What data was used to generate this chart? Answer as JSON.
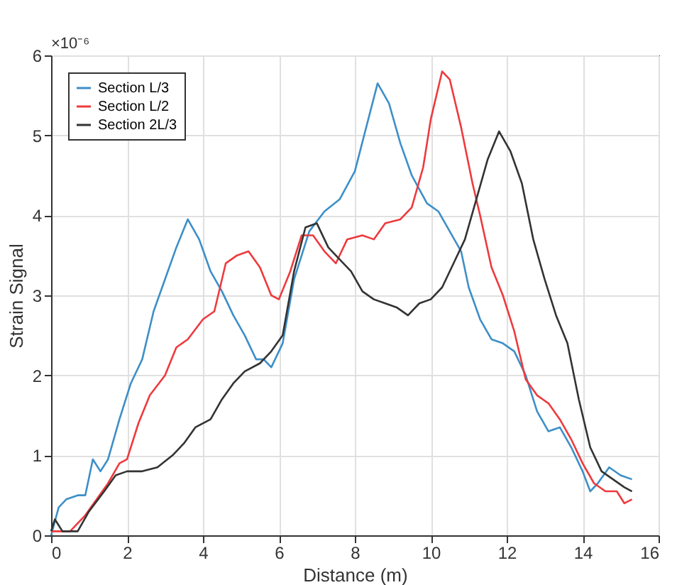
{
  "chart_data": {
    "type": "line",
    "xlabel": "Distance (m)",
    "ylabel": "Strain Signal",
    "annotations": [
      "×10⁻⁶"
    ],
    "xlim": [
      0,
      16
    ],
    "xticks": [
      0,
      2,
      4,
      6,
      8,
      10,
      12,
      14,
      16
    ],
    "ylim": [
      0,
      6
    ],
    "yticks": [
      0,
      1,
      2,
      3,
      4,
      5,
      6
    ],
    "grid": true,
    "legend": "top left",
    "marker": "none",
    "line_style": "solid",
    "series": [
      {
        "name": "Section L/3",
        "color": "#3d8fc8",
        "x": [
          0,
          0.2,
          0.4,
          0.7,
          0.9,
          1.1,
          1.3,
          1.5,
          1.8,
          2.1,
          2.4,
          2.7,
          3.0,
          3.3,
          3.6,
          3.9,
          4.2,
          4.5,
          4.8,
          5.1,
          5.4,
          5.6,
          5.8,
          6.1,
          6.4,
          6.8,
          7.2,
          7.6,
          8.0,
          8.3,
          8.6,
          8.9,
          9.2,
          9.5,
          9.9,
          10.2,
          10.5,
          10.8,
          11.0,
          11.3,
          11.6,
          11.9,
          12.2,
          12.5,
          12.8,
          13.1,
          13.4,
          13.7,
          14.0,
          14.2,
          14.4,
          14.7,
          15.0,
          15.3
        ],
        "values": [
          0,
          0.35,
          0.45,
          0.5,
          0.5,
          0.95,
          0.8,
          0.95,
          1.45,
          1.9,
          2.2,
          2.8,
          3.2,
          3.6,
          3.95,
          3.7,
          3.3,
          3.05,
          2.75,
          2.5,
          2.2,
          2.2,
          2.1,
          2.4,
          3.2,
          3.8,
          4.05,
          4.2,
          4.55,
          5.1,
          5.65,
          5.4,
          4.9,
          4.5,
          4.15,
          4.05,
          3.8,
          3.55,
          3.1,
          2.7,
          2.45,
          2.4,
          2.3,
          2.0,
          1.55,
          1.3,
          1.35,
          1.1,
          0.8,
          0.55,
          0.65,
          0.85,
          0.75,
          0.7
        ]
      },
      {
        "name": "Section L/2",
        "color": "#ee3a3e",
        "x": [
          0,
          0.5,
          0.9,
          1.2,
          1.5,
          1.8,
          2.0,
          2.3,
          2.6,
          3.0,
          3.3,
          3.6,
          4.0,
          4.3,
          4.6,
          4.9,
          5.2,
          5.5,
          5.8,
          6.0,
          6.3,
          6.6,
          6.9,
          7.2,
          7.5,
          7.8,
          8.2,
          8.5,
          8.8,
          9.2,
          9.5,
          9.8,
          10.0,
          10.3,
          10.5,
          10.8,
          11.1,
          11.3,
          11.6,
          11.9,
          12.2,
          12.5,
          12.8,
          13.1,
          13.4,
          13.7,
          14.0,
          14.3,
          14.6,
          14.9,
          15.1,
          15.3
        ],
        "values": [
          0.05,
          0.05,
          0.25,
          0.45,
          0.65,
          0.9,
          0.95,
          1.4,
          1.75,
          2.0,
          2.35,
          2.45,
          2.7,
          2.8,
          3.4,
          3.5,
          3.55,
          3.35,
          3.0,
          2.95,
          3.3,
          3.75,
          3.75,
          3.55,
          3.4,
          3.7,
          3.75,
          3.7,
          3.9,
          3.95,
          4.1,
          4.6,
          5.2,
          5.8,
          5.7,
          5.1,
          4.4,
          4.0,
          3.35,
          3.0,
          2.55,
          1.95,
          1.75,
          1.65,
          1.45,
          1.2,
          0.9,
          0.65,
          0.55,
          0.55,
          0.4,
          0.45
        ]
      },
      {
        "name": "Section 2L/3",
        "color": "#333333",
        "x": [
          0,
          0.1,
          0.3,
          0.7,
          1.0,
          1.4,
          1.7,
          2.0,
          2.4,
          2.8,
          3.2,
          3.5,
          3.8,
          4.2,
          4.5,
          4.8,
          5.1,
          5.5,
          5.8,
          6.1,
          6.4,
          6.7,
          7.0,
          7.3,
          7.6,
          7.9,
          8.2,
          8.5,
          8.8,
          9.1,
          9.4,
          9.7,
          10.0,
          10.3,
          10.6,
          10.9,
          11.2,
          11.5,
          11.8,
          12.1,
          12.4,
          12.7,
          13.0,
          13.3,
          13.6,
          13.9,
          14.2,
          14.5,
          14.8,
          15.1,
          15.3
        ],
        "values": [
          0.05,
          0.2,
          0.05,
          0.05,
          0.3,
          0.55,
          0.75,
          0.8,
          0.8,
          0.85,
          1.0,
          1.15,
          1.35,
          1.45,
          1.7,
          1.9,
          2.05,
          2.15,
          2.3,
          2.5,
          3.3,
          3.85,
          3.9,
          3.6,
          3.45,
          3.3,
          3.05,
          2.95,
          2.9,
          2.85,
          2.75,
          2.9,
          2.95,
          3.1,
          3.4,
          3.7,
          4.2,
          4.7,
          5.05,
          4.8,
          4.4,
          3.7,
          3.2,
          2.75,
          2.4,
          1.7,
          1.1,
          0.8,
          0.7,
          0.6,
          0.55
        ]
      }
    ]
  }
}
